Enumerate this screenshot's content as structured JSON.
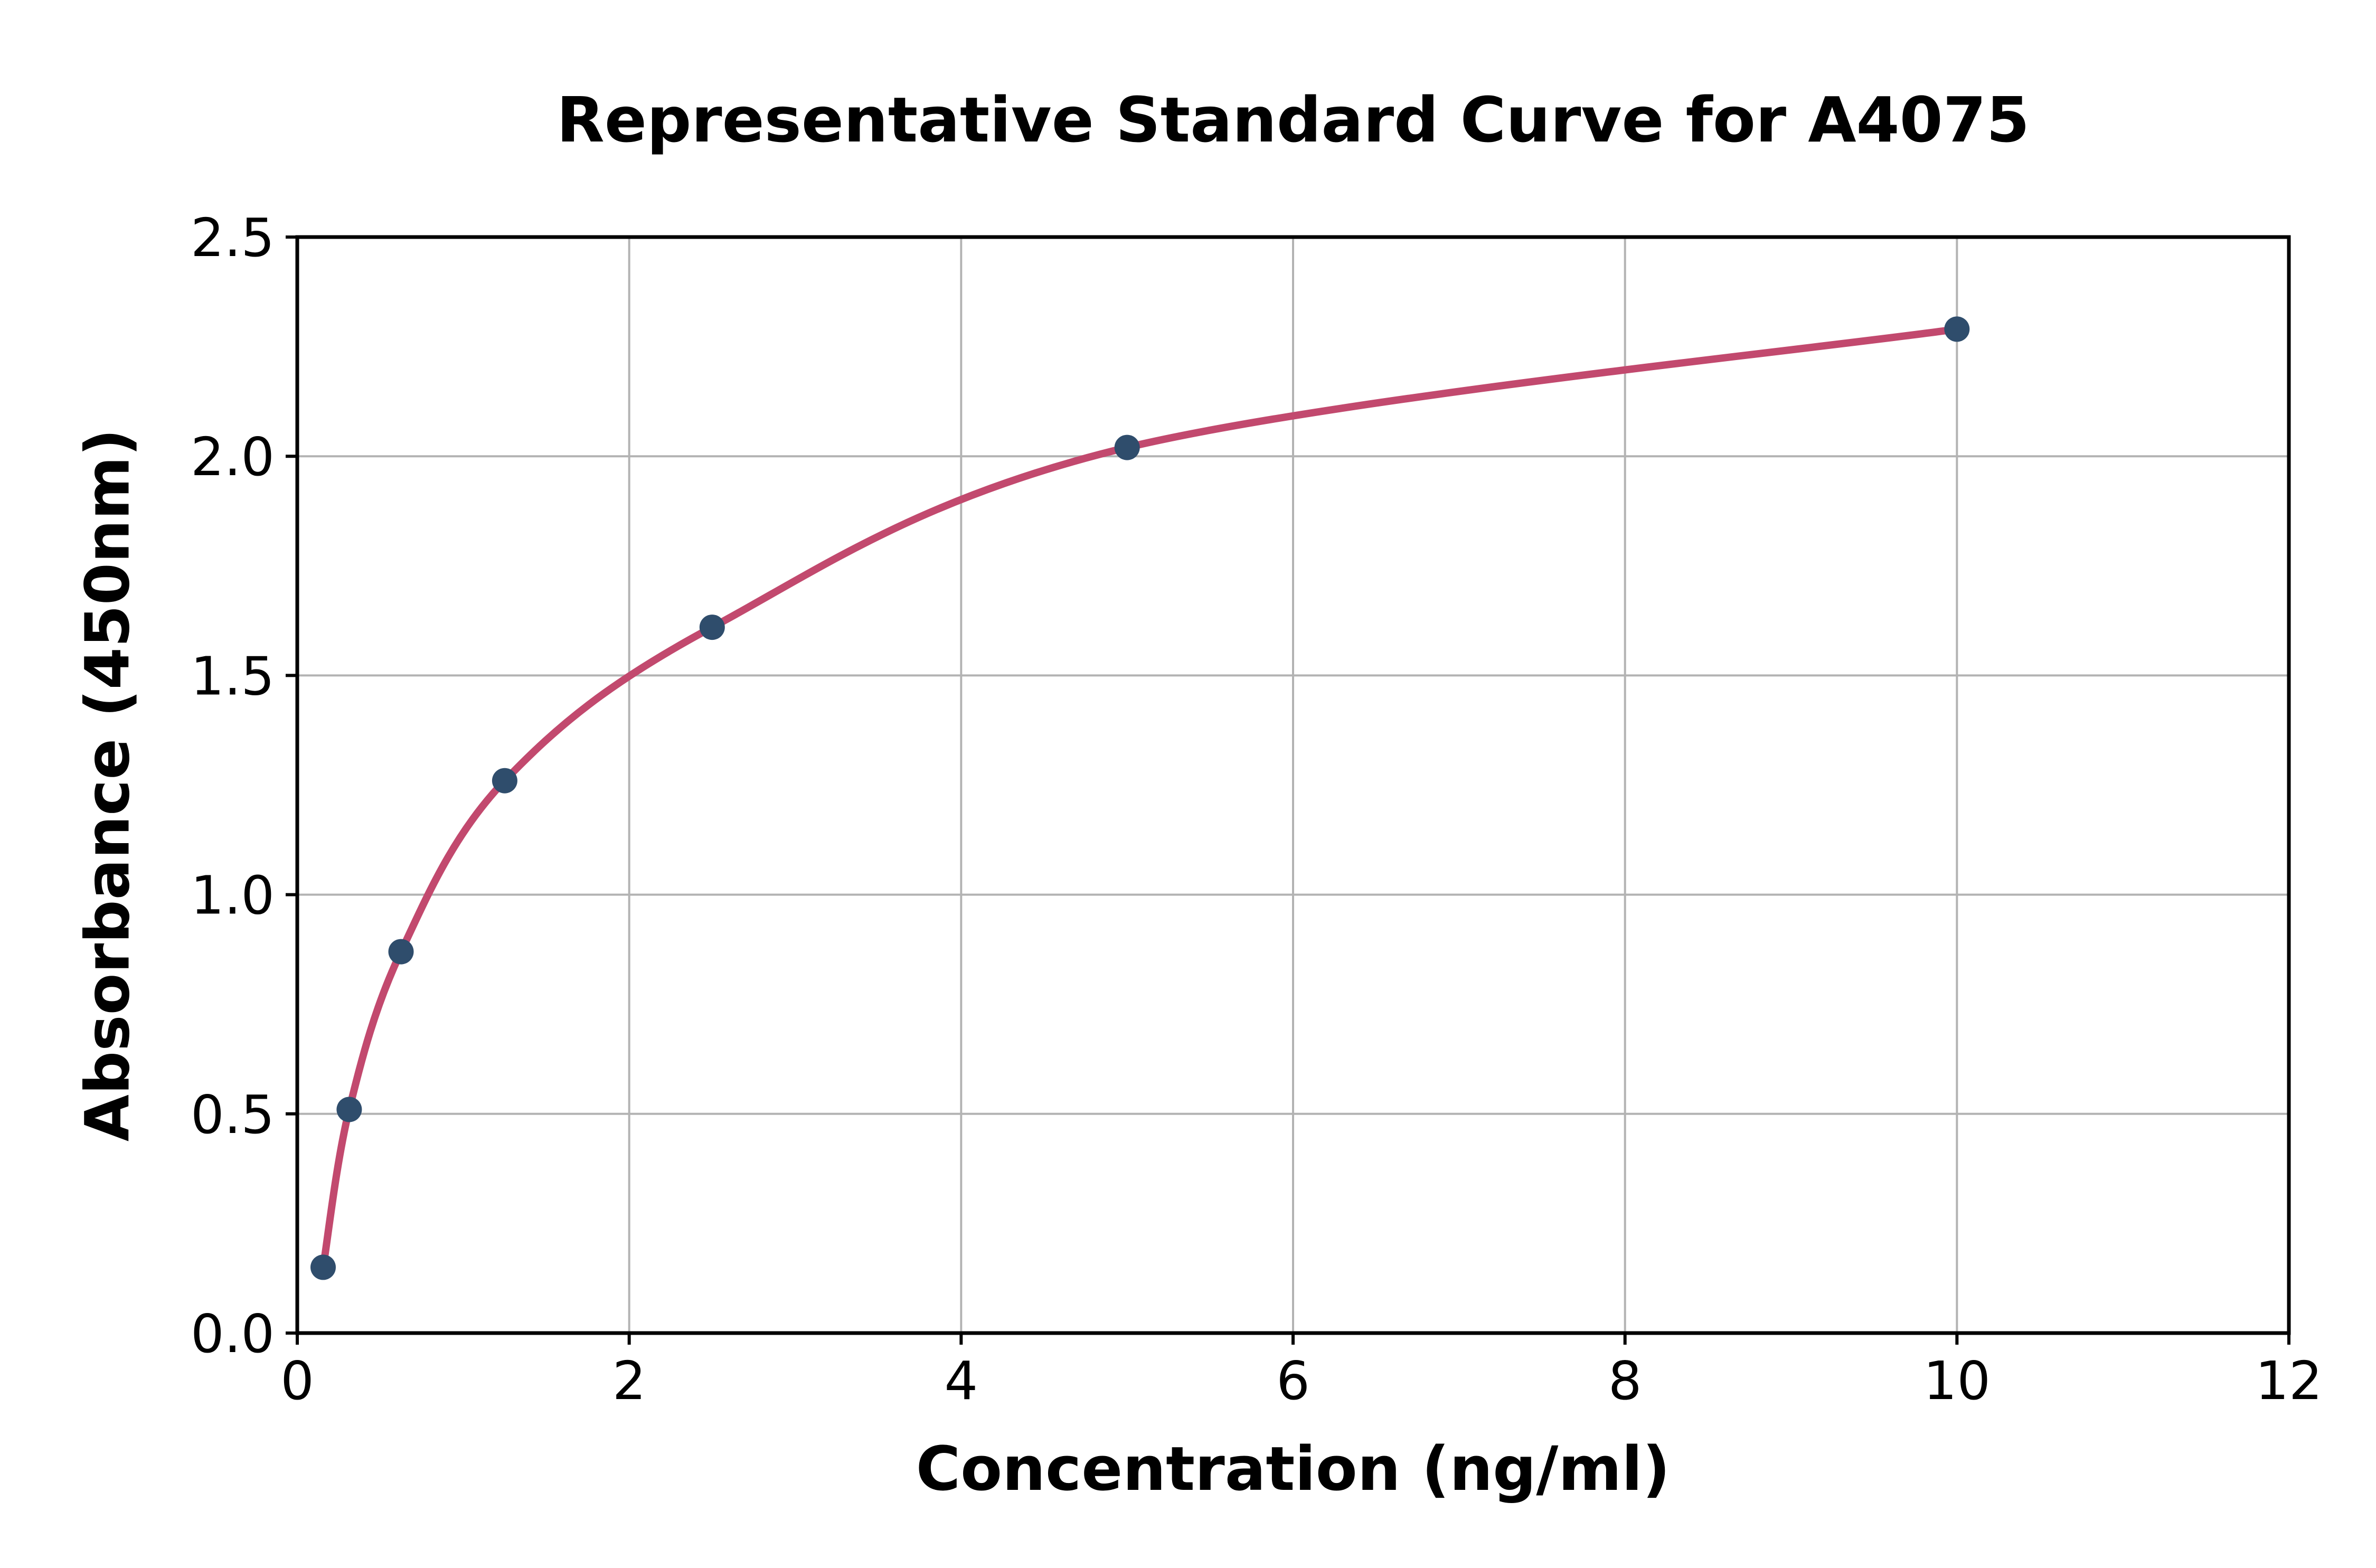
{
  "title": "Representative Standard Curve for A4075",
  "x_axis": {
    "label": "Concentration (ng/ml)",
    "tick_values": [
      0,
      2,
      4,
      6,
      8,
      10,
      12
    ],
    "tick_labels": [
      "0",
      "2",
      "4",
      "6",
      "8",
      "10",
      "12"
    ],
    "min": 0,
    "max": 12
  },
  "y_axis": {
    "label": "Absorbance (450nm)",
    "tick_values": [
      0,
      0.5,
      1,
      1.5,
      2,
      2.5
    ],
    "tick_labels": [
      "0.0",
      "0.5",
      "1.0",
      "1.5",
      "2.0",
      "2.5"
    ],
    "min": 0,
    "max": 2.5
  },
  "chart_data": {
    "type": "scatter",
    "title": "Representative Standard Curve for A4075",
    "xlabel": "Concentration (ng/ml)",
    "ylabel": "Absorbance (450nm)",
    "xlim": [
      0,
      12
    ],
    "ylim": [
      0,
      2.5
    ],
    "grid": true,
    "legend_position": "none",
    "x_ticks": [
      0,
      2,
      4,
      6,
      8,
      10,
      12
    ],
    "y_ticks": [
      0,
      0.5,
      1,
      1.5,
      2,
      2.5
    ],
    "series": [
      {
        "name": "standard-points",
        "type": "scatter",
        "x": [
          0.156,
          0.313,
          0.625,
          1.25,
          2.5,
          5,
          10
        ],
        "y": [
          0.15,
          0.51,
          0.87,
          1.26,
          1.61,
          2.02,
          2.29
        ]
      },
      {
        "name": "fitted-curve",
        "type": "line",
        "description": "smooth 4PL-style fit drawn through the standard points from x=0.156 to x=10"
      }
    ],
    "colors": {
      "curve": "#c2496e",
      "points": "#2f4d6c",
      "grid": "#b3b3b3",
      "axis": "#000000",
      "background": "#ffffff"
    }
  }
}
